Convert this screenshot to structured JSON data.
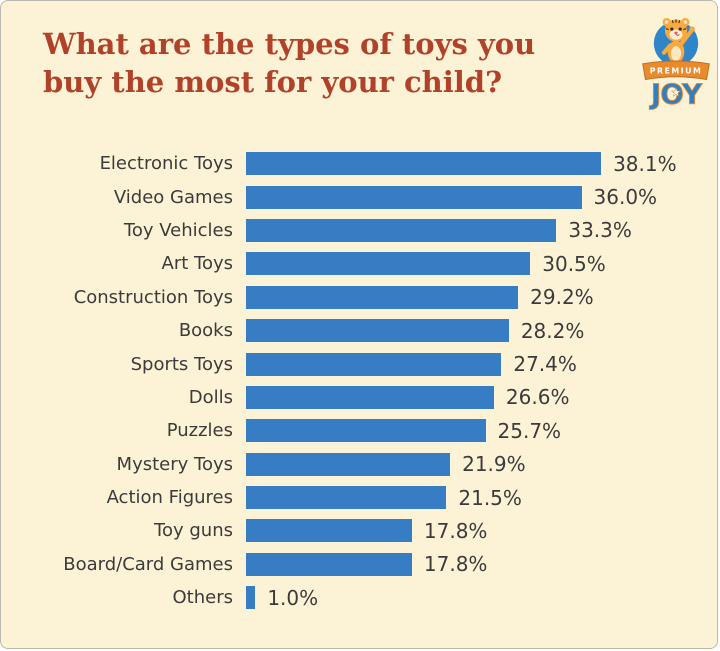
{
  "theme": {
    "background": "#FCF3D6",
    "bar_color": "#377DC3",
    "title_color": "#B0422A",
    "label_color": "#3B3B3B",
    "logo_blue": "#2E86C8",
    "logo_orange": "#E98A2B"
  },
  "header": {
    "title_line1": "What are the types of toys you",
    "title_line2": "buy the most for your child?"
  },
  "logo": {
    "brand_top": "PREMIUM",
    "brand_bottom": "JOY"
  },
  "chart_data": {
    "type": "bar",
    "orientation": "horizontal",
    "title": "What are the types of toys you buy the most for your child?",
    "xlabel": "",
    "ylabel": "",
    "unit": "%",
    "xlim": [
      0,
      40
    ],
    "grid": false,
    "legend": "none",
    "categories": [
      "Electronic Toys",
      "Video Games",
      "Toy Vehicles",
      "Art Toys",
      "Construction Toys",
      "Books",
      "Sports Toys",
      "Dolls",
      "Puzzles",
      "Mystery Toys",
      "Action Figures",
      "Toy guns",
      "Board/Card Games",
      "Others"
    ],
    "values": [
      38.1,
      36.0,
      33.3,
      30.5,
      29.2,
      28.2,
      27.4,
      26.6,
      25.7,
      21.9,
      21.5,
      17.8,
      17.8,
      1.0
    ],
    "value_labels": [
      "38.1%",
      "36.0%",
      "33.3%",
      "30.5%",
      "29.2%",
      "28.2%",
      "27.4%",
      "26.6%",
      "25.7%",
      "21.9%",
      "21.5%",
      "17.8%",
      "17.8%",
      "1.0%"
    ]
  }
}
